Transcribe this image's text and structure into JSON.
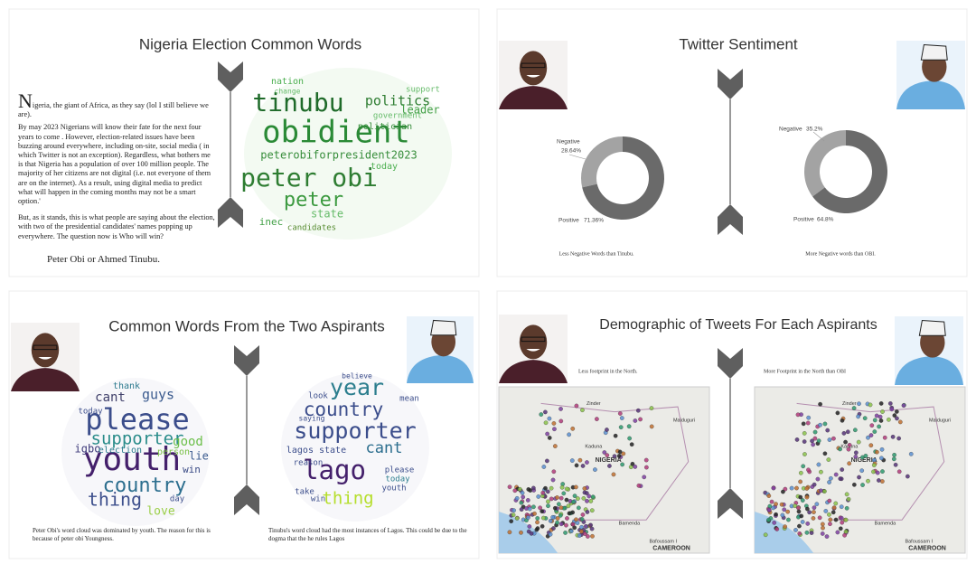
{
  "panels": [
    {
      "title": "Nigeria Election Common Words",
      "dropcap": "N",
      "paragraphs": [
        "igeria, the giant of Africa, as they say (lol I still believe we are).",
        "By may 2023 Nigerians will know their fate for the next four years to come . However, election-related issues have been buzzing around everywhere, including on-site, social media ( in which Twitter is not an exception). Regardless, what bothers me is that Nigeria has a population of over 100 million people. The majority of her citizens are not digital (i.e. not everyone of them are on the internet). As a result, using digital media to predict what will happen in the coming months may not be a smart option.'",
        "But, as it stands, this is what people are saying about the election, with two of the presidential candidates' names popping up everywhere. The question now is Who will win?"
      ],
      "closing": "Peter Obi or Ahmed Tinubu.",
      "words": [
        "tinubu",
        "obidient",
        "peter obi",
        "peter",
        "politics",
        "peterobiforpresident2023",
        "nation",
        "leader",
        "government",
        "inec",
        "state",
        "candidates",
        "today",
        "support",
        "politician",
        "change"
      ]
    },
    {
      "title": "Twitter Sentiment",
      "captions": [
        "Less Negative Words than Tinubu.",
        "More Negative words than OBI."
      ]
    },
    {
      "title": "Common Words From the Two Aspirants",
      "clouds": [
        {
          "words": [
            "please",
            "youth",
            "country",
            "supporter",
            "thing",
            "guys",
            "cant",
            "good",
            "igbo",
            "election",
            "love",
            "win",
            "lie",
            "thank",
            "person",
            "today",
            "day"
          ],
          "caption": "Peter Obi's word cloud was dominated by youth. The reason for this is because of peter obi Youngness."
        },
        {
          "words": [
            "year",
            "country",
            "supporter",
            "cant",
            "lago",
            "thing",
            "lagos state",
            "look",
            "reason",
            "today",
            "take",
            "win",
            "please",
            "youth",
            "mean",
            "believe",
            "saying"
          ],
          "caption": "Tinubu's word cloud had the most instances of Lagos. This could be due to the dogma that the he rules Lagos"
        }
      ]
    },
    {
      "title": "Demographic of Tweets For Each Aspirants",
      "maps": [
        {
          "note": "Less footprint in the North.",
          "places": [
            "Zinder",
            "Kaduna",
            "NIGERIA",
            "Maiduguri",
            "Bamenda",
            "Bafoussam I",
            "CAMEROON"
          ]
        },
        {
          "note": "More Footprint in the North than OBI",
          "places": [
            "Zinder",
            "Kaduna",
            "NIGERIA",
            "Maiduguri",
            "Bamenda",
            "Bafoussam I",
            "CAMEROON"
          ]
        }
      ]
    }
  ],
  "chart_data": [
    {
      "type": "pie",
      "categories": [
        "Negative",
        "Positive"
      ],
      "values": [
        28.64,
        71.36
      ],
      "value_labels": [
        "28.64%",
        "71.36%"
      ],
      "colors": [
        "#a3a3a3",
        "#6a6a6a"
      ]
    },
    {
      "type": "pie",
      "categories": [
        "Negative",
        "Positive"
      ],
      "values": [
        35.2,
        64.8
      ],
      "value_labels": [
        "35.2%",
        "64.8%"
      ],
      "colors": [
        "#a3a3a3",
        "#6a6a6a"
      ]
    }
  ]
}
